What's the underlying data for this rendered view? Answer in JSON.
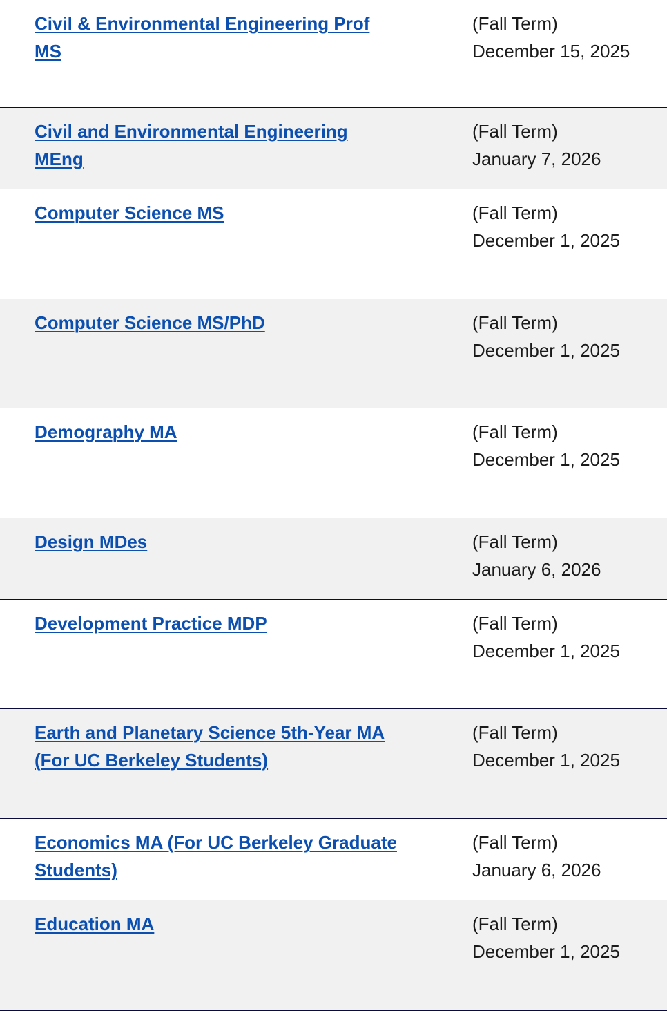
{
  "programs": [
    {
      "name": "Civil & Environmental Engineering Prof MS",
      "term": "(Fall Term)",
      "deadline": "December 15, 2025"
    },
    {
      "name": "Civil and Environmental Engineering MEng",
      "term": "(Fall Term)",
      "deadline": "January 7, 2026"
    },
    {
      "name": "Computer Science MS",
      "term": "(Fall Term)",
      "deadline": "December 1, 2025"
    },
    {
      "name": "Computer Science MS/PhD",
      "term": "(Fall Term)",
      "deadline": "December 1, 2025"
    },
    {
      "name": "Demography MA",
      "term": "(Fall Term)",
      "deadline": "December 1, 2025"
    },
    {
      "name": "Design MDes",
      "term": "(Fall Term)",
      "deadline": "January 6, 2026"
    },
    {
      "name": "Development Practice MDP",
      "term": "(Fall Term)",
      "deadline": "December 1, 2025"
    },
    {
      "name": "Earth and Planetary Science 5th-Year MA (For UC Berkeley Students)",
      "term": "(Fall Term)",
      "deadline": "December 1, 2025"
    },
    {
      "name": "Economics MA (For UC Berkeley Graduate Students)",
      "term": "(Fall Term)",
      "deadline": "January 6, 2026"
    },
    {
      "name": "Education MA",
      "term": "(Fall Term)",
      "deadline": "December 1, 2025"
    }
  ],
  "colors": {
    "link": "#0b4fb0",
    "row_alt": "#f1f1f1",
    "divider": "#0a0a3c"
  }
}
